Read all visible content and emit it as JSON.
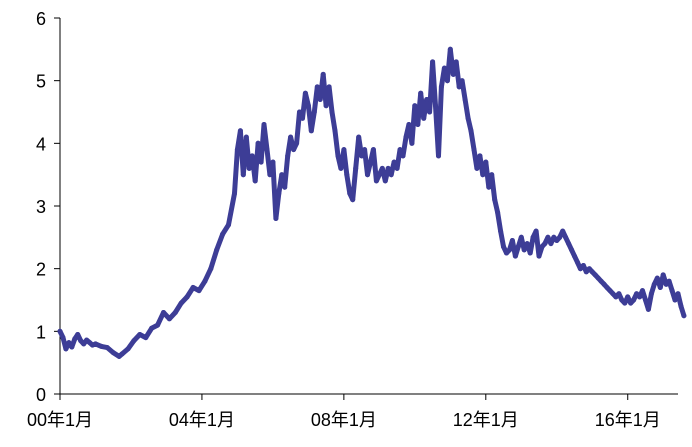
{
  "chart_data": {
    "type": "line",
    "title": "",
    "xlabel": "",
    "ylabel": "",
    "ylim": [
      0,
      6
    ],
    "xlim": [
      "2000-01",
      "2017-06"
    ],
    "y_ticks": [
      "0",
      "1",
      "2",
      "3",
      "4",
      "5",
      "6"
    ],
    "x_ticks": [
      {
        "label": "00年1月",
        "date": "2000-01"
      },
      {
        "label": "04年1月",
        "date": "2004-01"
      },
      {
        "label": "08年1月",
        "date": "2008-01"
      },
      {
        "label": "12年1月",
        "date": "2012-01"
      },
      {
        "label": "16年1月",
        "date": "2016-01"
      }
    ],
    "grid": false,
    "legend": "none",
    "series": [
      {
        "color": "#3d3d96",
        "points": [
          [
            "2000-01",
            1.0
          ],
          [
            "2000-02",
            0.9
          ],
          [
            "2000-03",
            0.72
          ],
          [
            "2000-04",
            0.82
          ],
          [
            "2000-05",
            0.75
          ],
          [
            "2000-06",
            0.88
          ],
          [
            "2000-07",
            0.95
          ],
          [
            "2000-08",
            0.85
          ],
          [
            "2000-09",
            0.8
          ],
          [
            "2000-10",
            0.86
          ],
          [
            "2000-11",
            0.82
          ],
          [
            "2000-12",
            0.78
          ],
          [
            "2001-01",
            0.8
          ],
          [
            "2001-03",
            0.76
          ],
          [
            "2001-05",
            0.74
          ],
          [
            "2001-07",
            0.66
          ],
          [
            "2001-09",
            0.6
          ],
          [
            "2001-10",
            0.64
          ],
          [
            "2001-12",
            0.72
          ],
          [
            "2002-02",
            0.85
          ],
          [
            "2002-04",
            0.95
          ],
          [
            "2002-06",
            0.9
          ],
          [
            "2002-08",
            1.05
          ],
          [
            "2002-10",
            1.1
          ],
          [
            "2002-12",
            1.3
          ],
          [
            "2003-02",
            1.2
          ],
          [
            "2003-04",
            1.3
          ],
          [
            "2003-06",
            1.45
          ],
          [
            "2003-08",
            1.55
          ],
          [
            "2003-10",
            1.7
          ],
          [
            "2003-12",
            1.65
          ],
          [
            "2004-02",
            1.8
          ],
          [
            "2004-04",
            2.0
          ],
          [
            "2004-06",
            2.3
          ],
          [
            "2004-08",
            2.55
          ],
          [
            "2004-10",
            2.7
          ],
          [
            "2004-12",
            3.2
          ],
          [
            "2005-01",
            3.9
          ],
          [
            "2005-02",
            4.2
          ],
          [
            "2005-03",
            3.5
          ],
          [
            "2005-04",
            4.1
          ],
          [
            "2005-05",
            3.6
          ],
          [
            "2005-06",
            3.8
          ],
          [
            "2005-07",
            3.4
          ],
          [
            "2005-08",
            4.0
          ],
          [
            "2005-09",
            3.7
          ],
          [
            "2005-10",
            4.3
          ],
          [
            "2005-11",
            3.9
          ],
          [
            "2005-12",
            3.5
          ],
          [
            "2006-01",
            3.7
          ],
          [
            "2006-02",
            2.8
          ],
          [
            "2006-03",
            3.2
          ],
          [
            "2006-04",
            3.5
          ],
          [
            "2006-05",
            3.3
          ],
          [
            "2006-06",
            3.8
          ],
          [
            "2006-07",
            4.1
          ],
          [
            "2006-08",
            3.9
          ],
          [
            "2006-09",
            4.0
          ],
          [
            "2006-10",
            4.5
          ],
          [
            "2006-11",
            4.4
          ],
          [
            "2006-12",
            4.8
          ],
          [
            "2007-01",
            4.6
          ],
          [
            "2007-02",
            4.2
          ],
          [
            "2007-03",
            4.5
          ],
          [
            "2007-04",
            4.9
          ],
          [
            "2007-05",
            4.7
          ],
          [
            "2007-06",
            5.1
          ],
          [
            "2007-07",
            4.6
          ],
          [
            "2007-08",
            4.9
          ],
          [
            "2007-09",
            4.5
          ],
          [
            "2007-10",
            4.2
          ],
          [
            "2007-11",
            3.8
          ],
          [
            "2007-12",
            3.6
          ],
          [
            "2008-01",
            3.9
          ],
          [
            "2008-02",
            3.5
          ],
          [
            "2008-03",
            3.2
          ],
          [
            "2008-04",
            3.1
          ],
          [
            "2008-05",
            3.6
          ],
          [
            "2008-06",
            4.1
          ],
          [
            "2008-07",
            3.8
          ],
          [
            "2008-08",
            3.9
          ],
          [
            "2008-09",
            3.5
          ],
          [
            "2008-10",
            3.7
          ],
          [
            "2008-11",
            3.9
          ],
          [
            "2008-12",
            3.4
          ],
          [
            "2009-01",
            3.5
          ],
          [
            "2009-02",
            3.6
          ],
          [
            "2009-03",
            3.4
          ],
          [
            "2009-04",
            3.6
          ],
          [
            "2009-05",
            3.5
          ],
          [
            "2009-06",
            3.7
          ],
          [
            "2009-07",
            3.6
          ],
          [
            "2009-08",
            3.9
          ],
          [
            "2009-09",
            3.8
          ],
          [
            "2009-10",
            4.1
          ],
          [
            "2009-11",
            4.3
          ],
          [
            "2009-12",
            4.0
          ],
          [
            "2010-01",
            4.6
          ],
          [
            "2010-02",
            4.3
          ],
          [
            "2010-03",
            4.8
          ],
          [
            "2010-04",
            4.4
          ],
          [
            "2010-05",
            4.7
          ],
          [
            "2010-06",
            4.5
          ],
          [
            "2010-07",
            5.3
          ],
          [
            "2010-08",
            4.6
          ],
          [
            "2010-09",
            3.8
          ],
          [
            "2010-10",
            4.9
          ],
          [
            "2010-11",
            5.2
          ],
          [
            "2010-12",
            5.0
          ],
          [
            "2011-01",
            5.5
          ],
          [
            "2011-02",
            5.1
          ],
          [
            "2011-03",
            5.3
          ],
          [
            "2011-04",
            4.9
          ],
          [
            "2011-05",
            5.0
          ],
          [
            "2011-06",
            4.7
          ],
          [
            "2011-07",
            4.4
          ],
          [
            "2011-08",
            4.2
          ],
          [
            "2011-09",
            3.9
          ],
          [
            "2011-10",
            3.6
          ],
          [
            "2011-11",
            3.8
          ],
          [
            "2011-12",
            3.5
          ],
          [
            "2012-01",
            3.7
          ],
          [
            "2012-02",
            3.3
          ],
          [
            "2012-03",
            3.5
          ],
          [
            "2012-04",
            3.1
          ],
          [
            "2012-05",
            2.9
          ],
          [
            "2012-06",
            2.6
          ],
          [
            "2012-07",
            2.35
          ],
          [
            "2012-08",
            2.25
          ],
          [
            "2012-09",
            2.3
          ],
          [
            "2012-10",
            2.45
          ],
          [
            "2012-11",
            2.2
          ],
          [
            "2012-12",
            2.35
          ],
          [
            "2013-01",
            2.5
          ],
          [
            "2013-02",
            2.3
          ],
          [
            "2013-03",
            2.4
          ],
          [
            "2013-04",
            2.25
          ],
          [
            "2013-05",
            2.5
          ],
          [
            "2013-06",
            2.6
          ],
          [
            "2013-07",
            2.2
          ],
          [
            "2013-08",
            2.35
          ],
          [
            "2013-09",
            2.4
          ],
          [
            "2013-10",
            2.5
          ],
          [
            "2013-11",
            2.4
          ],
          [
            "2013-12",
            2.5
          ],
          [
            "2014-01",
            2.45
          ],
          [
            "2014-02",
            2.5
          ],
          [
            "2014-03",
            2.6
          ],
          [
            "2014-04",
            2.5
          ],
          [
            "2014-05",
            2.4
          ],
          [
            "2014-06",
            2.3
          ],
          [
            "2014-07",
            2.2
          ],
          [
            "2014-08",
            2.1
          ],
          [
            "2014-09",
            2.0
          ],
          [
            "2014-10",
            2.05
          ],
          [
            "2014-11",
            1.95
          ],
          [
            "2014-12",
            2.0
          ],
          [
            "2015-01",
            1.95
          ],
          [
            "2015-02",
            1.9
          ],
          [
            "2015-03",
            1.85
          ],
          [
            "2015-04",
            1.8
          ],
          [
            "2015-05",
            1.75
          ],
          [
            "2015-06",
            1.7
          ],
          [
            "2015-07",
            1.65
          ],
          [
            "2015-08",
            1.6
          ],
          [
            "2015-09",
            1.55
          ],
          [
            "2015-10",
            1.6
          ],
          [
            "2015-11",
            1.5
          ],
          [
            "2015-12",
            1.45
          ],
          [
            "2016-01",
            1.55
          ],
          [
            "2016-02",
            1.45
          ],
          [
            "2016-03",
            1.5
          ],
          [
            "2016-04",
            1.6
          ],
          [
            "2016-05",
            1.55
          ],
          [
            "2016-06",
            1.65
          ],
          [
            "2016-07",
            1.5
          ],
          [
            "2016-08",
            1.35
          ],
          [
            "2016-09",
            1.6
          ],
          [
            "2016-10",
            1.75
          ],
          [
            "2016-11",
            1.85
          ],
          [
            "2016-12",
            1.7
          ],
          [
            "2017-01",
            1.9
          ],
          [
            "2017-02",
            1.75
          ],
          [
            "2017-03",
            1.8
          ],
          [
            "2017-04",
            1.65
          ],
          [
            "2017-05",
            1.5
          ],
          [
            "2017-06",
            1.6
          ],
          [
            "2017-07",
            1.4
          ],
          [
            "2017-08",
            1.25
          ]
        ]
      }
    ]
  }
}
